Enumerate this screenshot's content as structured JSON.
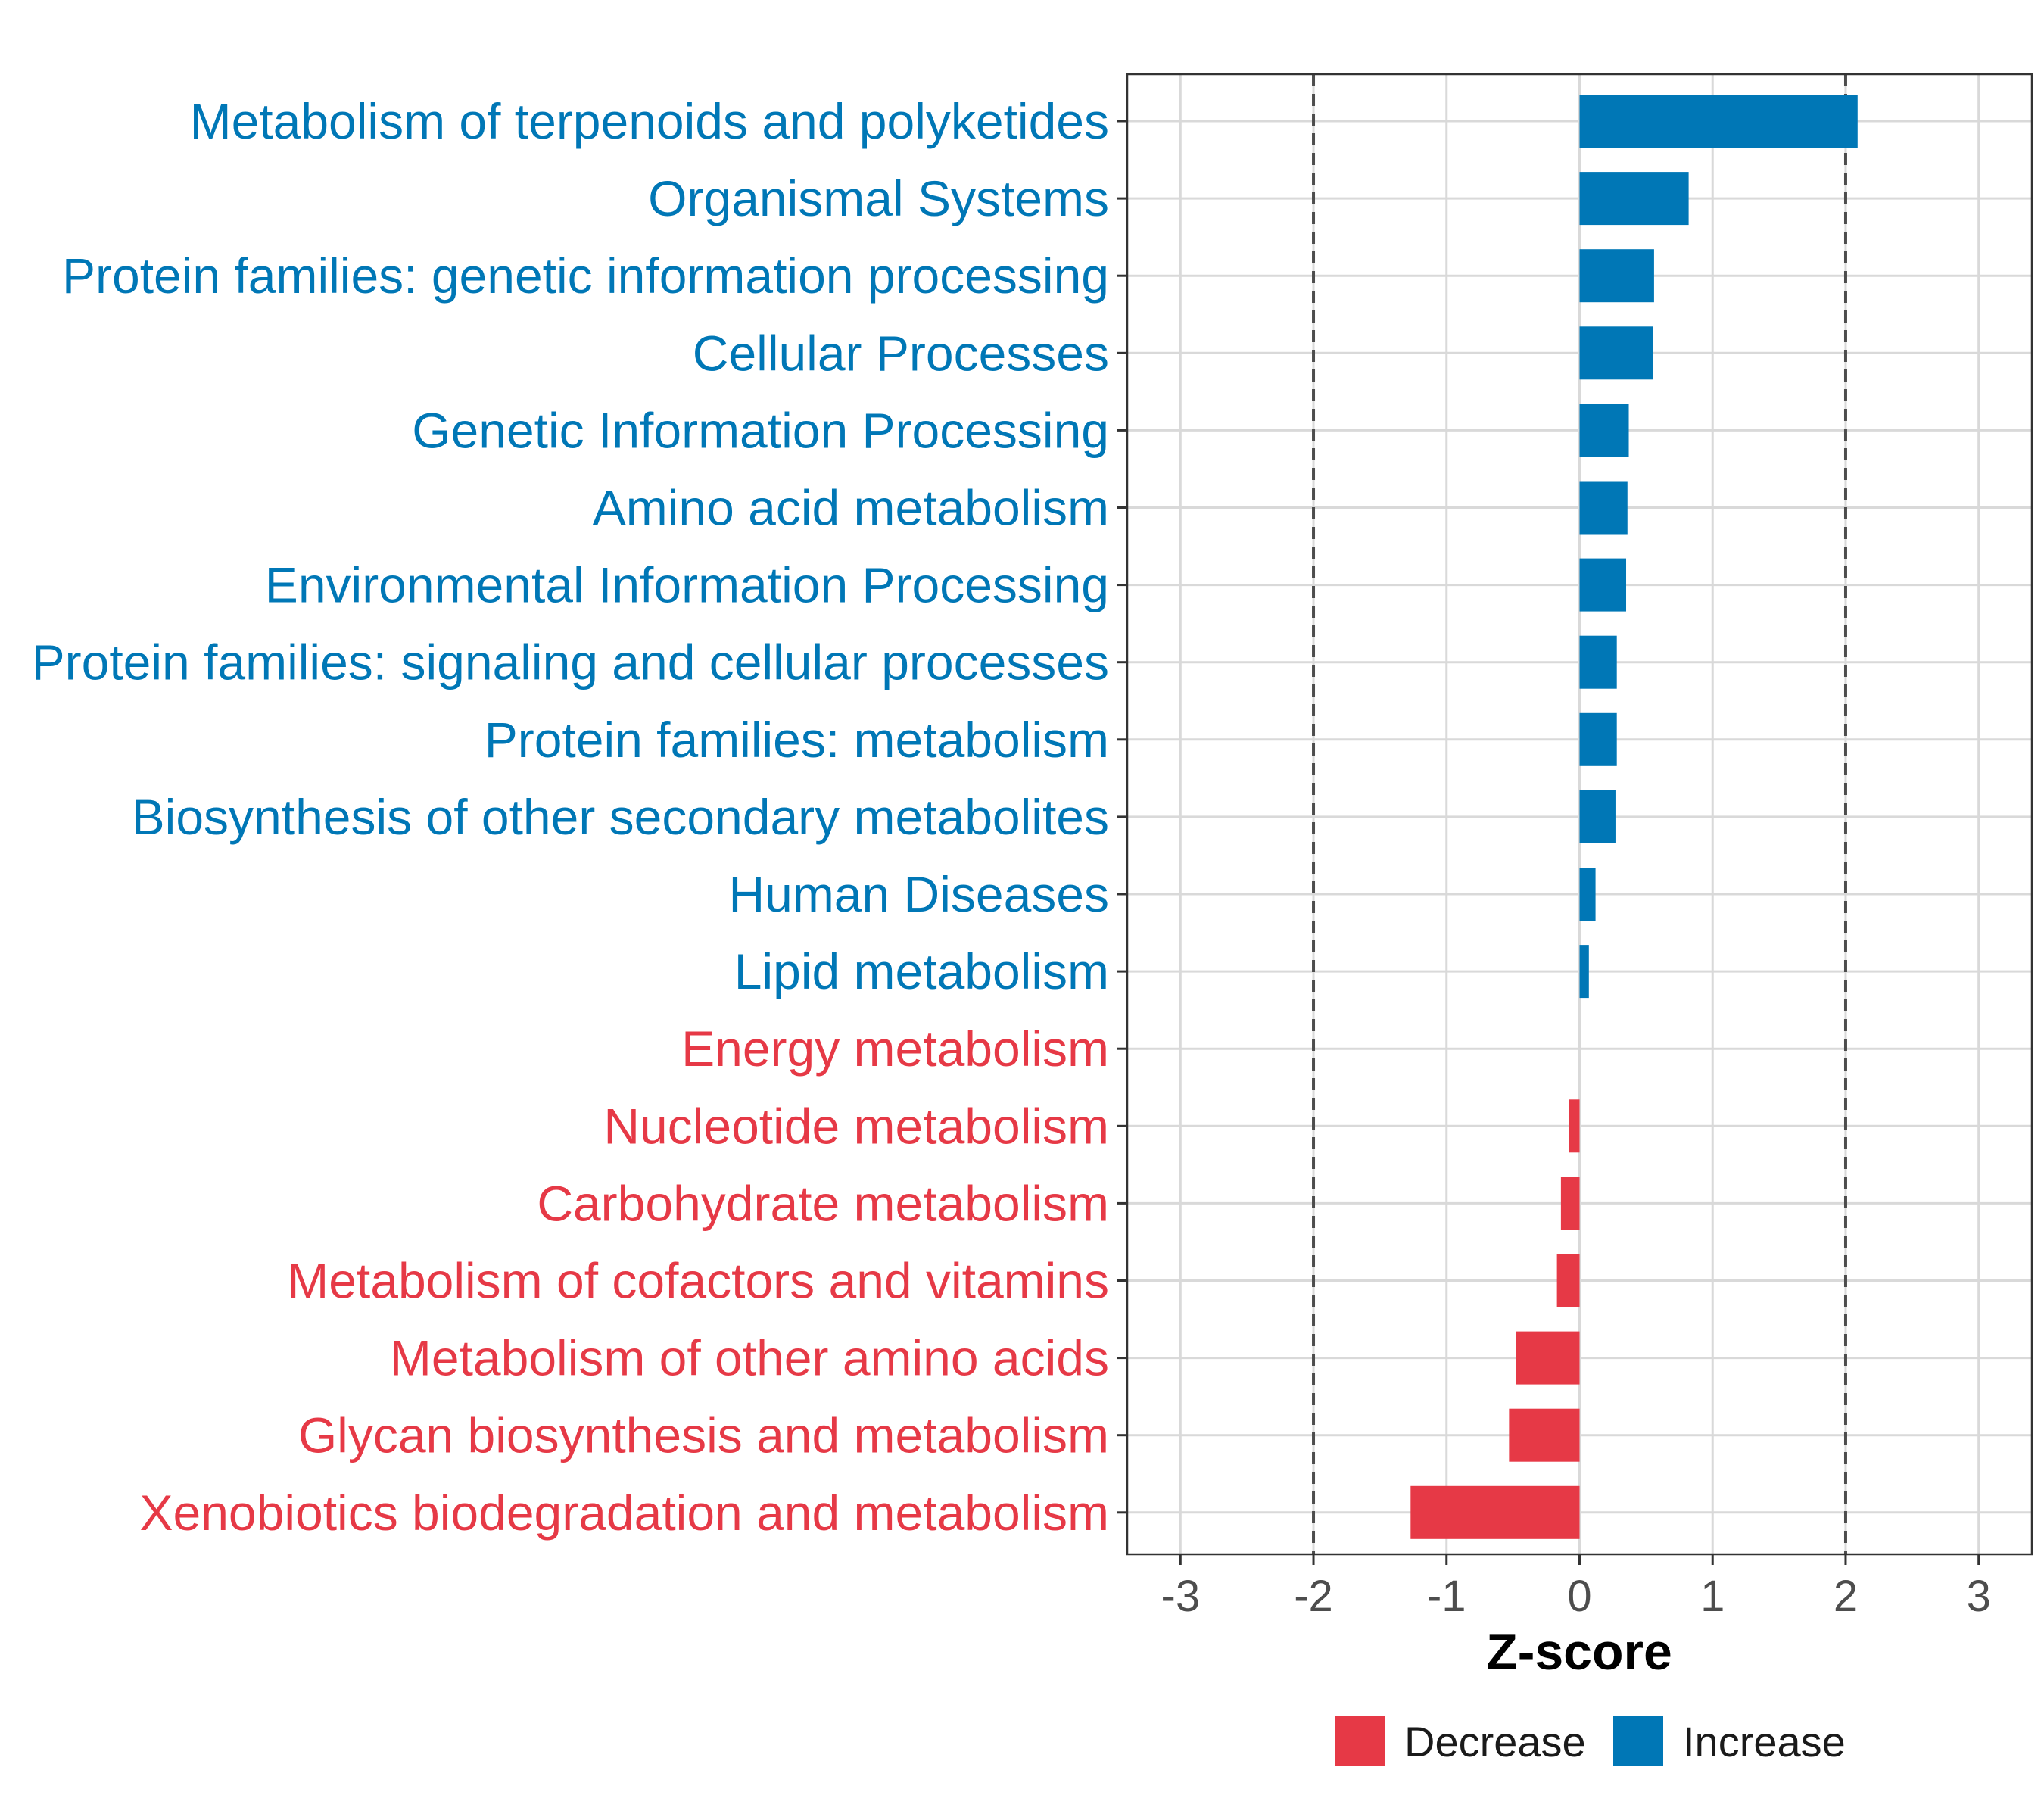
{
  "colors": {
    "decrease": "#E63946",
    "increase": "#0077B6"
  },
  "chart_data": {
    "type": "bar",
    "orientation": "horizontal",
    "title": "",
    "xlabel": "Z-score",
    "ylabel": "",
    "xlim": [
      -3.4,
      3.4
    ],
    "xticks": [
      -3,
      -2,
      -1,
      0,
      1,
      2,
      3
    ],
    "xtick_labels": [
      "-3",
      "-2",
      "-1",
      "0",
      "1",
      "2",
      "3"
    ],
    "reference_lines": [
      -2,
      2
    ],
    "grid": true,
    "legend_position": "bottom",
    "legend": [
      {
        "key": "decrease",
        "label": "Decrease"
      },
      {
        "key": "increase",
        "label": "Increase"
      }
    ],
    "categories": [
      "Metabolism of terpenoids and polyketides",
      "Organismal Systems",
      "Protein families: genetic information processing",
      "Cellular Processes",
      "Genetic Information Processing",
      "Amino acid metabolism",
      "Environmental Information Processing",
      "Protein families: signaling and cellular processes",
      "Protein families: metabolism",
      "Biosynthesis of other secondary metabolites",
      "Human Diseases",
      "Lipid metabolism",
      "Energy metabolism",
      "Nucleotide metabolism",
      "Carbohydrate metabolism",
      "Metabolism of cofactors and vitamins",
      "Metabolism of other amino acids",
      "Glycan biosynthesis and metabolism",
      "Xenobiotics biodegradation and metabolism"
    ],
    "values": [
      2.09,
      0.82,
      0.56,
      0.55,
      0.37,
      0.36,
      0.35,
      0.28,
      0.28,
      0.27,
      0.12,
      0.07,
      0.0,
      -0.08,
      -0.14,
      -0.17,
      -0.48,
      -0.53,
      -1.27
    ],
    "groups": [
      "increase",
      "increase",
      "increase",
      "increase",
      "increase",
      "increase",
      "increase",
      "increase",
      "increase",
      "increase",
      "increase",
      "increase",
      "decrease",
      "decrease",
      "decrease",
      "decrease",
      "decrease",
      "decrease",
      "decrease"
    ]
  }
}
